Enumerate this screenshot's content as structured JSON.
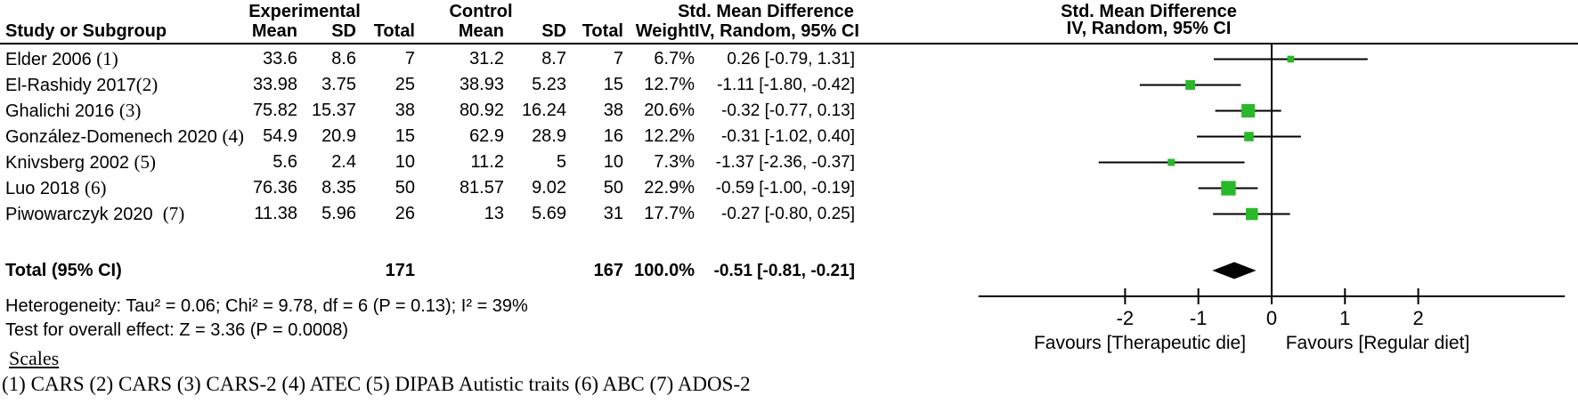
{
  "table": {
    "group_headers": {
      "experimental": "Experimental",
      "control": "Control",
      "smd_left": "Std. Mean Difference",
      "smd_right": "Std. Mean Difference"
    },
    "col_headers": {
      "study": "Study or Subgroup",
      "mean": "Mean",
      "sd": "SD",
      "total": "Total",
      "weight": "Weight",
      "ci": "IV, Random, 95% CI",
      "ci_plot": "IV, Random, 95% CI"
    },
    "rows": [
      {
        "study": "Elder 2006 ",
        "ref": "(1)",
        "e_mean": "33.6",
        "e_sd": "8.6",
        "e_total": "7",
        "c_mean": "31.2",
        "c_sd": "8.7",
        "c_total": "7",
        "weight": "6.7%",
        "ci_text": "0.26 [-0.79, 1.31]"
      },
      {
        "study": "El-Rashidy 2017",
        "ref": "(2)",
        "e_mean": "33.98",
        "e_sd": "3.75",
        "e_total": "25",
        "c_mean": "38.93",
        "c_sd": "5.23",
        "c_total": "15",
        "weight": "12.7%",
        "ci_text": "-1.11 [-1.80, -0.42]"
      },
      {
        "study": "Ghalichi 2016 ",
        "ref": "(3)",
        "e_mean": "75.82",
        "e_sd": "15.37",
        "e_total": "38",
        "c_mean": "80.92",
        "c_sd": "16.24",
        "c_total": "38",
        "weight": "20.6%",
        "ci_text": "-0.32 [-0.77, 0.13]"
      },
      {
        "study": "González-Domenech 2020 ",
        "ref": "(4)",
        "e_mean": "54.9",
        "e_sd": "20.9",
        "e_total": "15",
        "c_mean": "62.9",
        "c_sd": "28.9",
        "c_total": "16",
        "weight": "12.2%",
        "ci_text": "-0.31 [-1.02, 0.40]"
      },
      {
        "study": "Knivsberg 2002 ",
        "ref": "(5)",
        "e_mean": "5.6",
        "e_sd": "2.4",
        "e_total": "10",
        "c_mean": "11.2",
        "c_sd": "5",
        "c_total": "10",
        "weight": "7.3%",
        "ci_text": "-1.37 [-2.36, -0.37]"
      },
      {
        "study": "Luo 2018 ",
        "ref": "(6)",
        "e_mean": "76.36",
        "e_sd": "8.35",
        "e_total": "50",
        "c_mean": "81.57",
        "c_sd": "9.02",
        "c_total": "50",
        "weight": "22.9%",
        "ci_text": "-0.59 [-1.00, -0.19]"
      },
      {
        "study": "Piwowarczyk 2020  ",
        "ref": "(7)",
        "e_mean": "11.38",
        "e_sd": "5.96",
        "e_total": "26",
        "c_mean": "13",
        "c_sd": "5.69",
        "c_total": "31",
        "weight": "17.7%",
        "ci_text": "-0.27 [-0.80, 0.25]"
      }
    ],
    "total_row": {
      "label": "Total (95% CI)",
      "e_total": "171",
      "c_total": "167",
      "weight": "100.0%",
      "ci_text": "-0.51 [-0.81, -0.21]"
    },
    "heterogeneity": "Heterogeneity: Tau² = 0.06; Chi² = 9.78, df = 6 (P = 0.13); I² = 39%",
    "overall_effect": "Test for overall effect: Z = 3.36 (P = 0.0008)",
    "scales_heading": "Scales",
    "footnote": "(1) CARS (2) CARS (3) CARS-2 (4) ATEC (5) DIPAB Autistic traits (6) ABC (7) ADOS-2"
  },
  "chart_data": {
    "type": "forest",
    "effect_measure": "Std. Mean Difference",
    "model": "IV, Random, 95% CI",
    "studies": [
      "Elder 2006 (1)",
      "El-Rashidy 2017(2)",
      "Ghalichi 2016 (3)",
      "González-Domenech 2020 (4)",
      "Knivsberg 2002 (5)",
      "Luo 2018 (6)",
      "Piwowarczyk 2020 (7)"
    ],
    "estimates": [
      0.26,
      -1.11,
      -0.32,
      -0.31,
      -1.37,
      -0.59,
      -0.27
    ],
    "ci_low": [
      -0.79,
      -1.8,
      -0.77,
      -1.02,
      -2.36,
      -1.0,
      -0.8
    ],
    "ci_high": [
      1.31,
      -0.42,
      0.13,
      0.4,
      -0.37,
      -0.19,
      0.25
    ],
    "weights_pct": [
      6.7,
      12.7,
      20.6,
      12.2,
      7.3,
      22.9,
      17.7
    ],
    "total": {
      "label": "Total (95% CI)",
      "estimate": -0.51,
      "ci_low": -0.81,
      "ci_high": -0.21,
      "weight_pct": 100.0
    },
    "axis": {
      "min": -4,
      "max": 4,
      "ticks": [
        -2,
        -1,
        0,
        1,
        2
      ],
      "tick_labels": [
        "-2",
        "-1",
        "0",
        "1",
        "2"
      ]
    },
    "xlabel_left": "Favours [Therapeutic die]",
    "xlabel_right": "Favours [Regular diet]",
    "marker_color": "#29b829",
    "line_color": "#000000",
    "diamond_color": "#000000"
  }
}
